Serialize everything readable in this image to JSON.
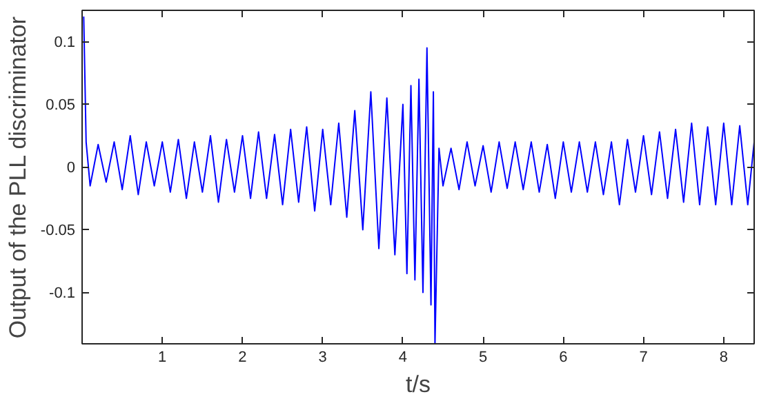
{
  "chart_data": {
    "type": "line",
    "xlabel": "t/s",
    "ylabel": "Output of the PLL discriminator",
    "xlim": [
      0,
      8.38
    ],
    "ylim": [
      -0.141,
      0.125
    ],
    "xticks": [
      1,
      2,
      3,
      4,
      5,
      6,
      7,
      8
    ],
    "yticks": [
      -0.1,
      -0.05,
      0,
      0.05,
      0.1
    ],
    "grid": false,
    "line_style": "solid",
    "series": [
      {
        "color": "#0000ff",
        "x": [
          0.02,
          0.05,
          0.1,
          0.2,
          0.3,
          0.4,
          0.5,
          0.6,
          0.7,
          0.8,
          0.9,
          1.0,
          1.1,
          1.2,
          1.3,
          1.4,
          1.5,
          1.6,
          1.7,
          1.8,
          1.9,
          2.0,
          2.1,
          2.2,
          2.3,
          2.4,
          2.5,
          2.6,
          2.7,
          2.8,
          2.9,
          3.0,
          3.1,
          3.2,
          3.3,
          3.4,
          3.5,
          3.6,
          3.7,
          3.8,
          3.9,
          4.0,
          4.05,
          4.1,
          4.15,
          4.2,
          4.25,
          4.3,
          4.35,
          4.38,
          4.4,
          4.45,
          4.5,
          4.6,
          4.7,
          4.8,
          4.9,
          5.0,
          5.1,
          5.2,
          5.3,
          5.4,
          5.5,
          5.6,
          5.7,
          5.8,
          5.9,
          6.0,
          6.1,
          6.2,
          6.3,
          6.4,
          6.5,
          6.6,
          6.7,
          6.8,
          6.9,
          7.0,
          7.1,
          7.2,
          7.3,
          7.4,
          7.5,
          7.6,
          7.7,
          7.8,
          7.9,
          8.0,
          8.1,
          8.2,
          8.3,
          8.38
        ],
        "values": [
          0.12,
          0.02,
          -0.015,
          0.018,
          -0.012,
          0.02,
          -0.018,
          0.025,
          -0.022,
          0.02,
          -0.015,
          0.02,
          -0.02,
          0.022,
          -0.025,
          0.02,
          -0.02,
          0.025,
          -0.028,
          0.022,
          -0.02,
          0.025,
          -0.025,
          0.028,
          -0.025,
          0.026,
          -0.03,
          0.03,
          -0.028,
          0.032,
          -0.035,
          0.03,
          -0.03,
          0.035,
          -0.04,
          0.045,
          -0.05,
          0.06,
          -0.065,
          0.055,
          -0.07,
          0.05,
          -0.085,
          0.065,
          -0.09,
          0.07,
          -0.1,
          0.095,
          -0.11,
          0.06,
          -0.141,
          0.015,
          -0.015,
          0.015,
          -0.018,
          0.02,
          -0.015,
          0.017,
          -0.02,
          0.02,
          -0.017,
          0.02,
          -0.018,
          0.02,
          -0.02,
          0.018,
          -0.025,
          0.02,
          -0.02,
          0.02,
          -0.02,
          0.02,
          -0.022,
          0.02,
          -0.03,
          0.022,
          -0.02,
          0.025,
          -0.022,
          0.028,
          -0.025,
          0.03,
          -0.028,
          0.035,
          -0.03,
          0.032,
          -0.03,
          0.035,
          -0.03,
          0.033,
          -0.03,
          0.02
        ]
      }
    ]
  }
}
